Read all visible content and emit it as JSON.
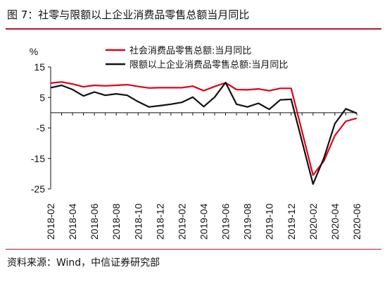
{
  "header": {
    "title": "图 7：社零与限额以上企业消费品零售总额当月同比"
  },
  "footer": {
    "source": "资料来源：Wind，中信证券研究部"
  },
  "chart_data": {
    "type": "line",
    "unit_label": "%",
    "ylim": [
      -25,
      15
    ],
    "yticks": [
      15,
      5,
      -5,
      -15,
      -25
    ],
    "x": [
      "2018-02",
      "2018-03",
      "2018-04",
      "2018-05",
      "2018-06",
      "2018-07",
      "2018-08",
      "2018-09",
      "2018-10",
      "2018-11",
      "2018-12",
      "2019-01",
      "2019-02",
      "2019-03",
      "2019-04",
      "2019-05",
      "2019-06",
      "2019-07",
      "2019-08",
      "2019-09",
      "2019-10",
      "2019-11",
      "2019-12",
      "2020-01",
      "2020-02",
      "2020-03",
      "2020-04",
      "2020-05",
      "2020-06"
    ],
    "xtick_labels": [
      "2018-02",
      "2018-04",
      "2018-06",
      "2018-08",
      "2018-10",
      "2018-12",
      "2019-02",
      "2019-04",
      "2019-06",
      "2019-08",
      "2019-10",
      "2019-12",
      "2020-02",
      "2020-04",
      "2020-06"
    ],
    "series": [
      {
        "name": "社会消费品零售总额:当月同比",
        "color": "#e2001a",
        "values": [
          9.7,
          10.1,
          9.4,
          8.5,
          9.0,
          8.8,
          9.0,
          9.2,
          8.6,
          8.1,
          8.2,
          8.2,
          8.2,
          8.7,
          7.2,
          8.6,
          9.8,
          7.6,
          7.5,
          7.8,
          7.2,
          8.0,
          8.0,
          null,
          -20.5,
          -15.8,
          -7.5,
          -2.8,
          -1.8
        ]
      },
      {
        "name": "限额以上企业消费品零售总额:当月同比",
        "color": "#111111",
        "values": [
          8.2,
          9.0,
          7.6,
          5.5,
          6.8,
          5.7,
          6.2,
          5.7,
          3.6,
          1.9,
          2.3,
          2.8,
          3.4,
          5.1,
          2.0,
          5.1,
          9.9,
          2.8,
          1.9,
          3.1,
          1.1,
          4.2,
          4.4,
          null,
          -23.4,
          -14.8,
          -3.6,
          1.3,
          -0.2
        ]
      }
    ]
  }
}
